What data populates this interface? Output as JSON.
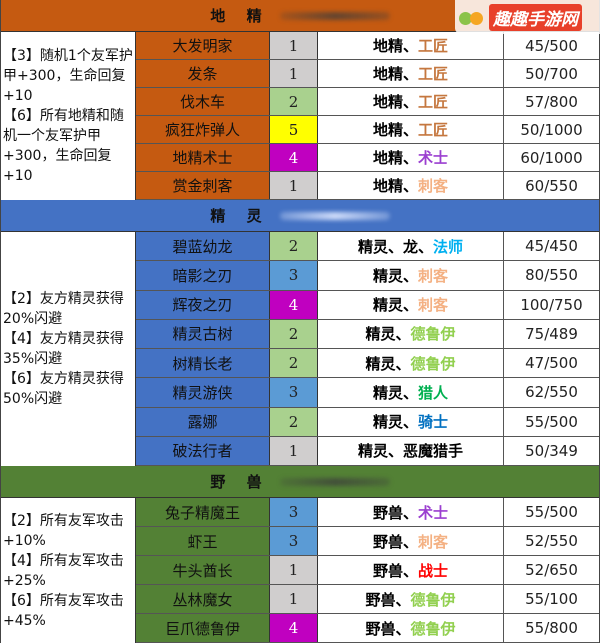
{
  "logo": {
    "text": "趣趣手游网"
  },
  "colors": {
    "gnome": "#c55a11",
    "elf": "#4472c4",
    "beast": "#538135",
    "cost": {
      "1": "#d0cece",
      "2": "#a9d18e",
      "3": "#5b9bd5",
      "4": "#c000c0",
      "5": "#ffff00"
    },
    "class": {
      "工匠": "#c5773f",
      "术士": "#9b3fd0",
      "刺客": "#f4b183",
      "法师": "#00b0f0",
      "德鲁伊": "#92d050",
      "猎人": "#00b050",
      "骑士": "#0070c0",
      "战士": "#ff0000"
    }
  },
  "sections": [
    {
      "id": "gnome",
      "title": "地 精",
      "desc": "【3】随机1个友军护甲+300，生命回复+10\n【6】所有地精和随机一个友军护甲+300，生命回复+10",
      "rowH": 28,
      "rows": [
        {
          "name": "大发明家",
          "cost": "1",
          "race": "地精、",
          "cls": "工匠",
          "stat": "45/500"
        },
        {
          "name": "发条",
          "cost": "1",
          "race": "地精、",
          "cls": "工匠",
          "stat": "50/700"
        },
        {
          "name": "伐木车",
          "cost": "2",
          "race": "地精、",
          "cls": "工匠",
          "stat": "57/800"
        },
        {
          "name": "疯狂炸弹人",
          "cost": "5",
          "race": "地精、",
          "cls": "工匠",
          "stat": "50/1000"
        },
        {
          "name": "地精术士",
          "cost": "4",
          "race": "地精、",
          "cls": "术士",
          "stat": "60/1000"
        },
        {
          "name": "赏金刺客",
          "cost": "1",
          "race": "地精、",
          "cls": "刺客",
          "stat": "60/550"
        }
      ]
    },
    {
      "id": "elf",
      "title": "精 灵",
      "desc": "【2】友方精灵获得20%闪避\n【4】友方精灵获得35%闪避\n【6】友方精灵获得50%闪避",
      "rowH": 29.25,
      "rows": [
        {
          "name": "碧蓝幼龙",
          "cost": "2",
          "race": "精灵、龙、",
          "cls": "法师",
          "stat": "45/450"
        },
        {
          "name": "暗影之刃",
          "cost": "3",
          "race": "精灵、",
          "cls": "刺客",
          "stat": "80/550"
        },
        {
          "name": "辉夜之刃",
          "cost": "4",
          "race": "精灵、",
          "cls": "刺客",
          "stat": "100/750"
        },
        {
          "name": "精灵古树",
          "cost": "2",
          "race": "精灵、",
          "cls": "德鲁伊",
          "stat": "75/489"
        },
        {
          "name": "树精长老",
          "cost": "2",
          "race": "精灵、",
          "cls": "德鲁伊",
          "stat": "47/500"
        },
        {
          "name": "精灵游侠",
          "cost": "3",
          "race": "精灵、",
          "cls": "猎人",
          "stat": "62/550"
        },
        {
          "name": "露娜",
          "cost": "2",
          "race": "精灵、",
          "cls": "骑士",
          "stat": "55/500"
        },
        {
          "name": "破法行者",
          "cost": "1",
          "race": "精灵、恶魔猎手",
          "cls": "",
          "stat": "50/349"
        }
      ]
    },
    {
      "id": "beast",
      "title": "野 兽",
      "desc": "【2】所有友军攻击+10%\n【4】所有友军攻击+25%\n【6】所有友军攻击+45%",
      "rowH": 29,
      "rows": [
        {
          "name": "兔子精魔王",
          "cost": "3",
          "race": "野兽、",
          "cls": "术士",
          "stat": "55/500"
        },
        {
          "name": "虾王",
          "cost": "3",
          "race": "野兽、",
          "cls": "刺客",
          "stat": "52/550"
        },
        {
          "name": "牛头酋长",
          "cost": "1",
          "race": "野兽、",
          "cls": "战士",
          "stat": "52/650"
        },
        {
          "name": "丛林魔女",
          "cost": "1",
          "race": "野兽、",
          "cls": "德鲁伊",
          "stat": "55/100"
        },
        {
          "name": "巨爪德鲁伊",
          "cost": "4",
          "race": "野兽、",
          "cls": "德鲁伊",
          "stat": "55/800"
        }
      ]
    }
  ]
}
